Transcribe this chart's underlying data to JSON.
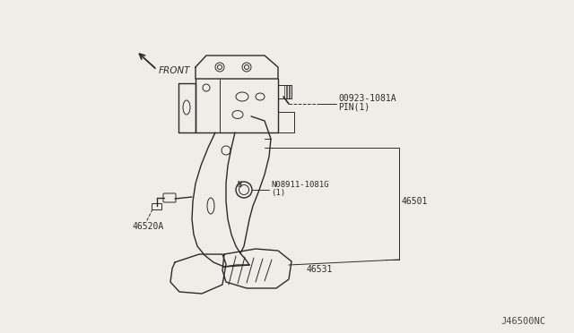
{
  "bg_color": "#f0ede8",
  "line_color": "#2a2a2a",
  "text_color": "#2a2a2a",
  "watermark": "J46500NC",
  "labels": {
    "front": "FRONT",
    "part1": "00923-1081A",
    "part1b": "PIN(1)",
    "part2_a": "N08911-1081G",
    "part2_b": "(1)",
    "part3": "46520A",
    "part4": "46501",
    "part5": "46531"
  },
  "font_size_labels": 7.0,
  "font_size_watermark": 7.5
}
